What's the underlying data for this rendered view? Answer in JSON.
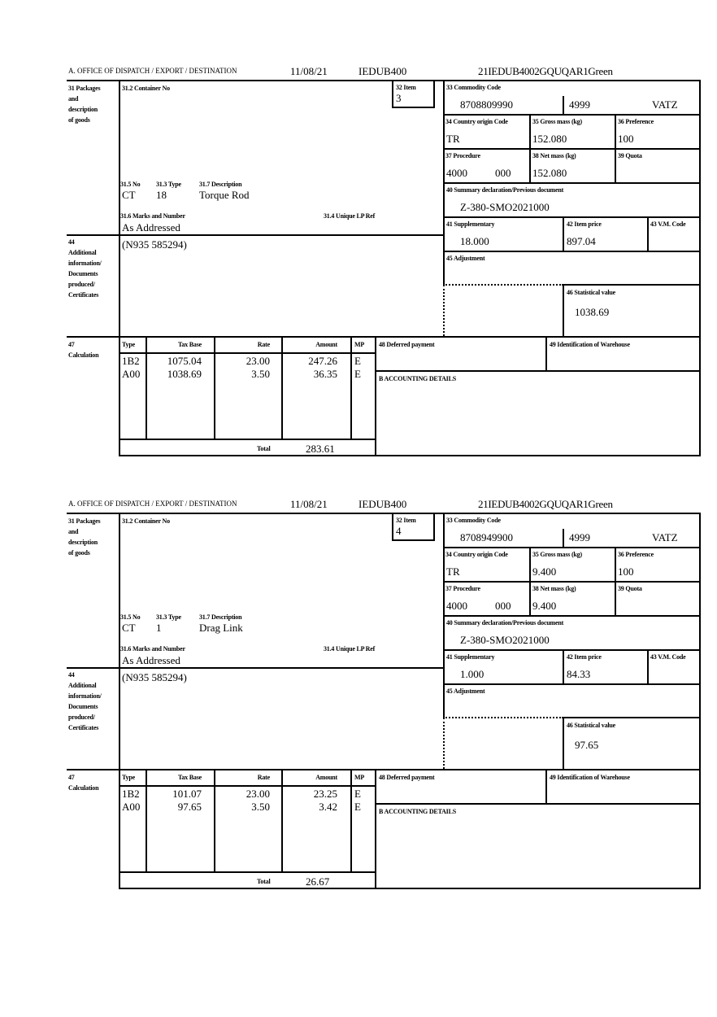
{
  "labels": {
    "office": "A. OFFICE OF DISPATCH / EXPORT / DESTINATION",
    "box31": [
      "31 Packages",
      "and",
      "description",
      "of goods"
    ],
    "container": "31.2 Container No",
    "item": "32 Item",
    "no": "31.5 No",
    "type": "31.3 Type",
    "desc": "31.7 Description",
    "marks": "31.6 Marks and Number",
    "lpref": "31.4 Unique LP Ref",
    "box44": [
      "44",
      "Additional",
      "information/",
      "Documents",
      "produced/",
      "Certificates"
    ],
    "commodity": "33 Commodity Code",
    "origin": "34 Country origin Code",
    "gross": "35 Gross mass (kg)",
    "preference": "36 Preference",
    "procedure": "37 Procedure",
    "net": "38 Net mass (kg)",
    "quota": "39 Quota",
    "summary": "40 Summary declaration/Previous document",
    "supp": "41 Supplementary",
    "price": "42 Item price",
    "vm": "43 V.M. Code",
    "adjust": "45 Adjustment",
    "statval": "46 Statistical value",
    "box47": [
      "47",
      "Calculation"
    ],
    "calc_headers": [
      "Type",
      "Tax Base",
      "Rate",
      "Amount",
      "MP"
    ],
    "total": "Total",
    "deferred": "48 Deferred payment",
    "warehouse": "49 Identification of Warehouse",
    "accounting": "B ACCOUNTING DETAILS"
  },
  "items": [
    {
      "date": "11/08/21",
      "office_code": "IEDUB400",
      "ref": "21IEDUB4002GQUQAR1Green",
      "item": "3",
      "no": "CT",
      "type": "18",
      "desc": "Torque Rod",
      "marks": "As Addressed",
      "info": "(N935 585294)",
      "commodity": "8708809990",
      "commodity_add": "4999",
      "vat": "VATZ",
      "origin": "TR",
      "gross": "152.080",
      "preference": "100",
      "procedure": "4000",
      "procedure_add": "000",
      "net": "152.080",
      "summary": "Z-380-SMO2021000",
      "supp": "18.000",
      "price": "897.04",
      "statval": "1038.69",
      "calc": [
        {
          "type": "1B2",
          "base": "1075.04",
          "rate": "23.00",
          "amount": "247.26",
          "mp": "E"
        },
        {
          "type": "A00",
          "base": "1038.69",
          "rate": "3.50",
          "amount": "36.35",
          "mp": "E"
        }
      ],
      "total": "283.61"
    },
    {
      "date": "11/08/21",
      "office_code": "IEDUB400",
      "ref": "21IEDUB4002GQUQAR1Green",
      "item": "4",
      "no": "CT",
      "type": "1",
      "desc": "Drag Link",
      "marks": "As Addressed",
      "info": "(N935 585294)",
      "commodity": "8708949900",
      "commodity_add": "4999",
      "vat": "VATZ",
      "origin": "TR",
      "gross": "9.400",
      "preference": "100",
      "procedure": "4000",
      "procedure_add": "000",
      "net": "9.400",
      "summary": "Z-380-SMO2021000",
      "supp": "1.000",
      "price": "84.33",
      "statval": "97.65",
      "calc": [
        {
          "type": "1B2",
          "base": "101.07",
          "rate": "23.00",
          "amount": "23.25",
          "mp": "E"
        },
        {
          "type": "A00",
          "base": "97.65",
          "rate": "3.50",
          "amount": "3.42",
          "mp": "E"
        }
      ],
      "total": "26.67"
    }
  ]
}
